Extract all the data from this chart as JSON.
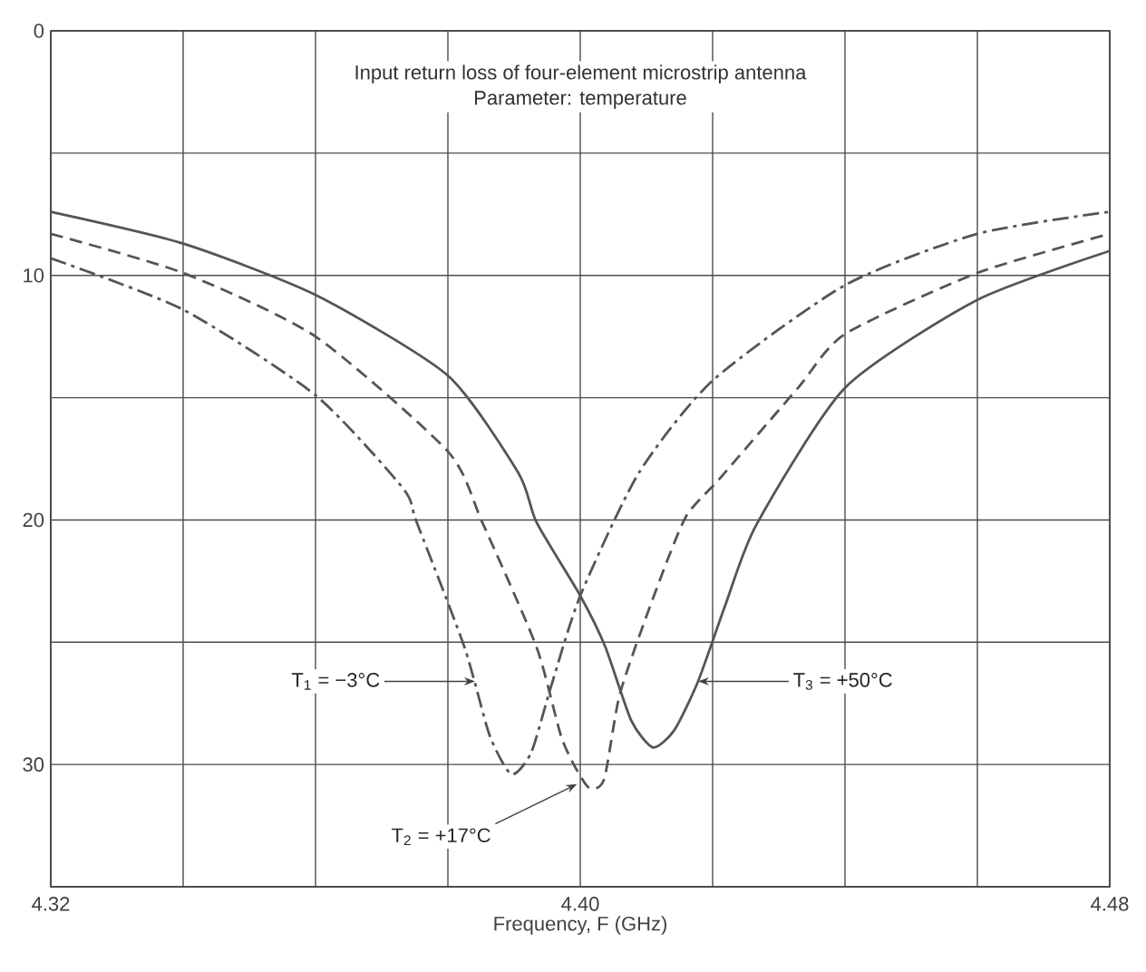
{
  "chart_data": {
    "type": "line",
    "title": "Input return loss of four-element microstrip antenna",
    "subtitle": "Parameter: temperature",
    "xlabel": "Frequency, F (GHz)",
    "xlim": [
      4.32,
      4.48
    ],
    "xticks": [
      4.32,
      {
        "value": 4.34,
        "label": null
      },
      {
        "value": 4.36,
        "label": null
      },
      {
        "value": 4.38,
        "label": null
      },
      {
        "value": 4.4,
        "label": "4.40"
      },
      {
        "value": 4.42,
        "label": null
      },
      {
        "value": 4.44,
        "label": null
      },
      {
        "value": 4.46,
        "label": null
      },
      4.48
    ],
    "ylim": [
      35,
      0
    ],
    "yticks": [
      0,
      {
        "value": 5,
        "label": null
      },
      10,
      {
        "value": 15,
        "label": null
      },
      20,
      {
        "value": 25,
        "label": null
      },
      30,
      {
        "value": 35,
        "label": null
      }
    ],
    "grid": true,
    "series": [
      {
        "color": "#555555",
        "line_style": "dashdot",
        "x": [
          4.32,
          4.34,
          4.36,
          4.3732,
          4.3753,
          4.3825,
          4.3863,
          4.3896,
          4.3926,
          4.3956,
          4.4,
          4.4088,
          4.42,
          4.44,
          4.46,
          4.48
        ],
        "values": [
          9.3,
          11.4,
          14.9,
          18.7,
          20.1,
          25.2,
          28.8,
          30.4,
          29.5,
          26.8,
          23.1,
          18.1,
          14.3,
          10.4,
          8.3,
          7.4
        ]
      },
      {
        "color": "#555555",
        "line_style": "dashed",
        "x": [
          4.32,
          4.34,
          4.36,
          4.38,
          4.3852,
          4.3934,
          4.3973,
          4.4011,
          4.4036,
          4.406,
          4.411,
          4.4159,
          4.4211,
          4.4329,
          4.44,
          4.46,
          4.48
        ],
        "values": [
          8.3,
          9.9,
          12.5,
          17.2,
          20.1,
          25.2,
          29.0,
          30.9,
          30.6,
          27.1,
          23.2,
          19.9,
          18.3,
          14.6,
          12.4,
          9.9,
          8.3
        ]
      },
      {
        "color": "#555555",
        "line_style": "solid",
        "x": [
          4.32,
          4.34,
          4.36,
          4.38,
          4.3907,
          4.3934,
          4.4,
          4.4038,
          4.4077,
          4.411,
          4.4142,
          4.4178,
          4.4219,
          4.4266,
          4.44,
          4.46,
          4.48
        ],
        "values": [
          7.4,
          8.7,
          10.8,
          14.1,
          18.1,
          20.1,
          23.1,
          25.2,
          28.2,
          29.3,
          28.6,
          26.6,
          23.5,
          20.2,
          14.6,
          11.0,
          9.0
        ]
      }
    ],
    "annotations": [
      {
        "text": "T$_{1}$ = −3°C",
        "x": 4.3841,
        "y": 26.6
      },
      {
        "text": "T$_{3}$ = +50°C",
        "x": 4.4178,
        "y": 26.6
      },
      {
        "text": "T$_{2}$ = +17°C",
        "x": 4.3995,
        "y": 30.8
      }
    ]
  }
}
